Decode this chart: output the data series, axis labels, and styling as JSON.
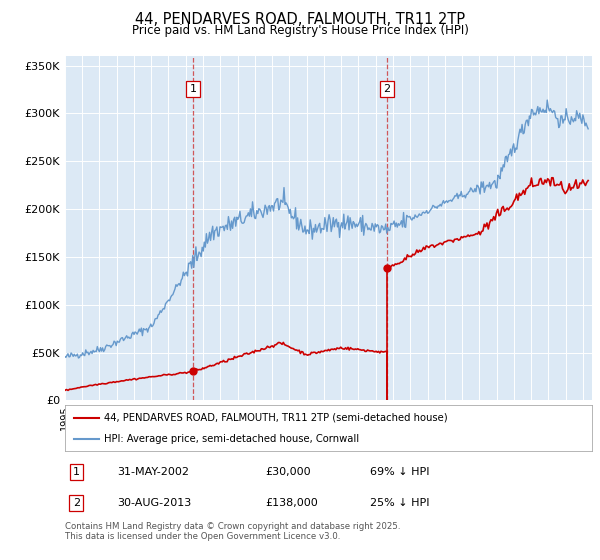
{
  "title1": "44, PENDARVES ROAD, FALMOUTH, TR11 2TP",
  "title2": "Price paid vs. HM Land Registry's House Price Index (HPI)",
  "ylabel_ticks": [
    "£0",
    "£50K",
    "£100K",
    "£150K",
    "£200K",
    "£250K",
    "£300K",
    "£350K"
  ],
  "ytick_values": [
    0,
    50000,
    100000,
    150000,
    200000,
    250000,
    300000,
    350000
  ],
  "ylim": [
    0,
    360000
  ],
  "xlim_start": 1995.0,
  "xlim_end": 2025.5,
  "plot_bg": "#dce9f5",
  "grid_color": "#ffffff",
  "red_line_color": "#cc0000",
  "blue_line_color": "#6699cc",
  "marker1_date": 2002.42,
  "marker1_value": 30000,
  "marker2_date": 2013.66,
  "marker2_value": 138000,
  "legend1": "44, PENDARVES ROAD, FALMOUTH, TR11 2TP (semi-detached house)",
  "legend2": "HPI: Average price, semi-detached house, Cornwall",
  "annotation1_label": "1",
  "annotation1_date_str": "31-MAY-2002",
  "annotation1_price": "£30,000",
  "annotation1_hpi": "69% ↓ HPI",
  "annotation2_label": "2",
  "annotation2_date_str": "30-AUG-2013",
  "annotation2_price": "£138,000",
  "annotation2_hpi": "25% ↓ HPI",
  "copyright_text": "Contains HM Land Registry data © Crown copyright and database right 2025.\nThis data is licensed under the Open Government Licence v3.0."
}
